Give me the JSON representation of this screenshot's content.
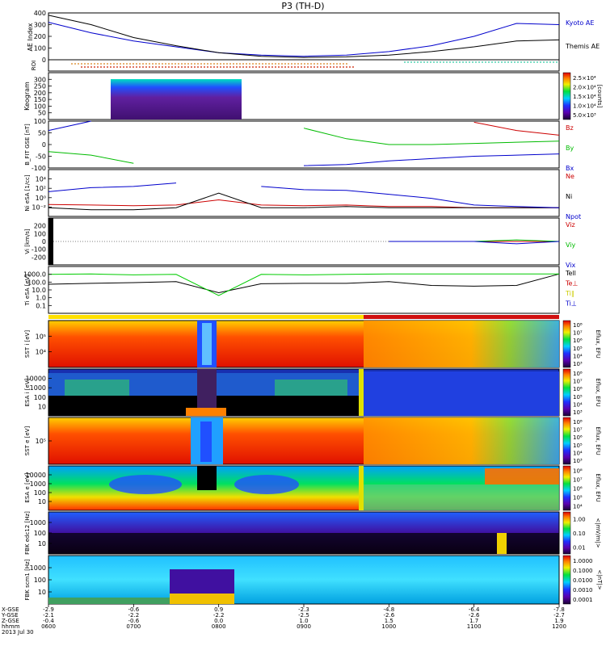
{
  "title": "P3 (TH-D)",
  "footer": {
    "row_labels": [
      "X-GSE",
      "Y-GSE",
      "Z-GSE",
      "hhmm",
      "2013 Jul 30"
    ],
    "columns": [
      {
        "x": "-2.9",
        "y": "-2.1",
        "z": "-0.4",
        "t": "0600"
      },
      {
        "x": "-0.6",
        "y": "-2.2",
        "z": "-0.6",
        "t": "0700"
      },
      {
        "x": "0.9",
        "y": "-2.2",
        "z": "0.0",
        "t": "0800"
      },
      {
        "x": "-2.3",
        "y": "-2.5",
        "z": "1.0",
        "t": "0900"
      },
      {
        "x": "-4.8",
        "y": "-2.6",
        "z": "1.5",
        "t": "1000"
      },
      {
        "x": "-6.4",
        "y": "-2.6",
        "z": "1.7",
        "t": "1100"
      },
      {
        "x": "-7.8",
        "y": "-2.7",
        "z": "1.9",
        "t": "1200"
      }
    ]
  },
  "chart_data": [
    {
      "type": "line",
      "ylabel": "AE Index",
      "ylim": [
        0,
        400
      ],
      "yticks": [
        "0",
        "100",
        "200",
        "300",
        "400"
      ],
      "x": [
        "0600",
        "0630",
        "0700",
        "0730",
        "0800",
        "0830",
        "0900",
        "0930",
        "1000",
        "1030",
        "1100",
        "1130",
        "1200"
      ],
      "series": [
        {
          "name": "Kyoto AE",
          "color": "#0000cc",
          "values": [
            320,
            230,
            160,
            110,
            60,
            40,
            30,
            40,
            70,
            120,
            200,
            310,
            300
          ]
        },
        {
          "name": "Themis AE",
          "color": "#000000",
          "values": [
            380,
            300,
            190,
            120,
            60,
            30,
            20,
            25,
            40,
            70,
            110,
            160,
            170
          ]
        }
      ]
    },
    {
      "type": "line",
      "ylabel": "ROI",
      "series": [
        {
          "name": "roi-orange",
          "color": "#d9821c",
          "values": [
            1
          ]
        },
        {
          "name": "roi-red",
          "color": "#cc2200",
          "values": [
            1
          ]
        },
        {
          "name": "roi-cyan",
          "color": "#2fc9a3",
          "values": [
            1
          ]
        }
      ]
    },
    {
      "type": "heatmap",
      "ylabel": "Keogram",
      "ylim": [
        0,
        300
      ],
      "yticks": [
        "50",
        "100",
        "150",
        "200",
        "250",
        "300"
      ],
      "colorbar": {
        "label": "[counts]",
        "ticks": [
          "5.0×10³",
          "1.0×10⁴",
          "1.5×10⁴",
          "2.0×10⁴",
          "2.5×10⁴"
        ]
      }
    },
    {
      "type": "line",
      "ylabel": "B_FIT GSE [nT]",
      "ylim": [
        -100,
        100
      ],
      "yticks": [
        "-100",
        "-50",
        "0",
        "50",
        "100"
      ],
      "x": [
        "0600",
        "0630",
        "0700",
        "0730",
        "0800",
        "0830",
        "0900",
        "0930",
        "1000",
        "1030",
        "1100",
        "1130",
        "1200"
      ],
      "series": [
        {
          "name": "Bz",
          "color": "#cc0000",
          "values": [
            null,
            null,
            null,
            null,
            null,
            null,
            null,
            null,
            null,
            null,
            95,
            60,
            40
          ]
        },
        {
          "name": "By",
          "color": "#00bb00",
          "values": [
            -30,
            -45,
            -80,
            null,
            null,
            null,
            70,
            25,
            0,
            0,
            5,
            10,
            15
          ]
        },
        {
          "name": "Bx",
          "color": "#0000cc",
          "values": [
            60,
            100,
            null,
            null,
            null,
            null,
            -90,
            -85,
            -70,
            -60,
            -50,
            -45,
            -40
          ]
        }
      ]
    },
    {
      "type": "line",
      "ylabel": "Ni eSA [1/cc]",
      "yticks": [
        "10⁻²",
        "10⁰",
        "10²",
        "10⁴"
      ],
      "x": [
        "0600",
        "0630",
        "0700",
        "0730",
        "0800",
        "0830",
        "0900",
        "0930",
        "1000",
        "1030",
        "1100",
        "1130",
        "1200"
      ],
      "series": [
        {
          "name": "Ne",
          "color": "#cc0000",
          "values": [
            0.6,
            0.5,
            0.4,
            0.5,
            3,
            0.5,
            0.4,
            0.5,
            0.3,
            0.3,
            0.2,
            0.2,
            0.2
          ]
        },
        {
          "name": "Ni",
          "color": "#000000",
          "values": [
            0.2,
            0.1,
            0.1,
            0.2,
            30,
            0.2,
            0.2,
            0.3,
            0.2,
            0.2,
            0.2,
            0.2,
            0.2
          ]
        },
        {
          "name": "Npot",
          "color": "#0000cc",
          "values": [
            50,
            200,
            300,
            1000,
            null,
            300,
            100,
            80,
            20,
            5,
            0.5,
            0.3,
            0.2
          ]
        }
      ]
    },
    {
      "type": "line",
      "ylabel": "Vi [km/s]",
      "ylim": [
        -300,
        300
      ],
      "yticks": [
        "-200",
        "-100",
        "0",
        "100",
        "200"
      ],
      "x": [
        "0600",
        "0630",
        "0700",
        "0730",
        "0800",
        "0830",
        "0900",
        "0930",
        "1000",
        "1030",
        "1100",
        "1130",
        "1200"
      ],
      "series": [
        {
          "name": "Viz",
          "color": "#cc0000",
          "values": [
            null,
            null,
            null,
            null,
            null,
            null,
            null,
            null,
            0,
            0,
            0,
            0,
            0
          ]
        },
        {
          "name": "Viy",
          "color": "#00bb00",
          "values": [
            null,
            null,
            null,
            null,
            null,
            null,
            null,
            null,
            0,
            0,
            0,
            20,
            0
          ]
        },
        {
          "name": "Vix",
          "color": "#0000cc",
          "values": [
            null,
            null,
            null,
            null,
            null,
            null,
            null,
            null,
            0,
            0,
            0,
            -30,
            0
          ]
        }
      ]
    },
    {
      "type": "line",
      "ylabel": "Ti eSA [eV]",
      "yticks": [
        "0.1",
        "1.0",
        "10.0",
        "100.0",
        "1000.0"
      ],
      "x": [
        "0600",
        "0630",
        "0700",
        "0730",
        "0800",
        "0830",
        "0900",
        "0930",
        "1000",
        "1030",
        "1100",
        "1130",
        "1200"
      ],
      "series": [
        {
          "name": "Tell",
          "color": "#000000",
          "values": [
            80,
            100,
            120,
            150,
            10,
            90,
            100,
            100,
            150,
            60,
            50,
            60,
            1000
          ]
        },
        {
          "name": "Te⊥",
          "color": "#cc0000",
          "values": [
            null,
            null,
            null,
            null,
            null,
            null,
            null,
            null,
            null,
            null,
            null,
            null,
            null
          ]
        },
        {
          "name": "Ti∥",
          "color": "#cccc00",
          "values": [
            null,
            null,
            null,
            null,
            null,
            null,
            null,
            null,
            null,
            null,
            null,
            null,
            null
          ]
        },
        {
          "name": "Ti⊥",
          "color": "#0000cc",
          "values": [
            null,
            null,
            null,
            null,
            null,
            null,
            null,
            null,
            null,
            null,
            null,
            null,
            null
          ]
        },
        {
          "name": "green-trace",
          "color": "#00cc00",
          "values": [
            900,
            1000,
            800,
            900,
            5,
            900,
            800,
            900,
            1000,
            1000,
            1000,
            1000,
            1000
          ]
        }
      ]
    },
    {
      "type": "heatmap",
      "ylabel": "SST i [eV]",
      "yticks": [
        "10⁴",
        "10⁵"
      ],
      "colorbar": {
        "label": "Eflux, EFU",
        "ticks": [
          "10³",
          "10⁴",
          "10⁵",
          "10⁶",
          "10⁷",
          "10⁸"
        ]
      }
    },
    {
      "type": "heatmap",
      "ylabel": "ESA i [eV]",
      "yticks": [
        "10",
        "100",
        "1000",
        "10000"
      ],
      "colorbar": {
        "label": "Eflux, EFU",
        "ticks": [
          "10³",
          "10⁴",
          "10⁵",
          "10⁶",
          "10⁷",
          "10⁸"
        ]
      }
    },
    {
      "type": "heatmap",
      "ylabel": "SST e [eV]",
      "yticks": [
        "10⁵"
      ],
      "colorbar": {
        "label": "Eflux, EFU",
        "ticks": [
          "10³",
          "10⁴",
          "10⁵",
          "10⁶",
          "10⁷",
          "10⁸"
        ]
      }
    },
    {
      "type": "heatmap",
      "ylabel": "ESA e [eV]",
      "yticks": [
        "10",
        "100",
        "1000",
        "10000"
      ],
      "colorbar": {
        "label": "Eflux, EFU",
        "ticks": [
          "10⁴",
          "10⁵",
          "10⁶",
          "10⁷",
          "10⁸"
        ]
      }
    },
    {
      "type": "heatmap",
      "ylabel": "FBK edc12 [Hz]",
      "yticks": [
        "10",
        "100",
        "1000"
      ],
      "colorbar": {
        "label": "<|mV/m|>",
        "ticks": [
          "0.01",
          "0.10",
          "1.00"
        ]
      }
    },
    {
      "type": "heatmap",
      "ylabel": "FBK scm1 [Hz]",
      "yticks": [
        "10",
        "100",
        "1000"
      ],
      "colorbar": {
        "label": "<|nT|>",
        "ticks": [
          "0.0001",
          "0.0010",
          "0.0100",
          "0.1000",
          "1.0000"
        ]
      }
    }
  ]
}
